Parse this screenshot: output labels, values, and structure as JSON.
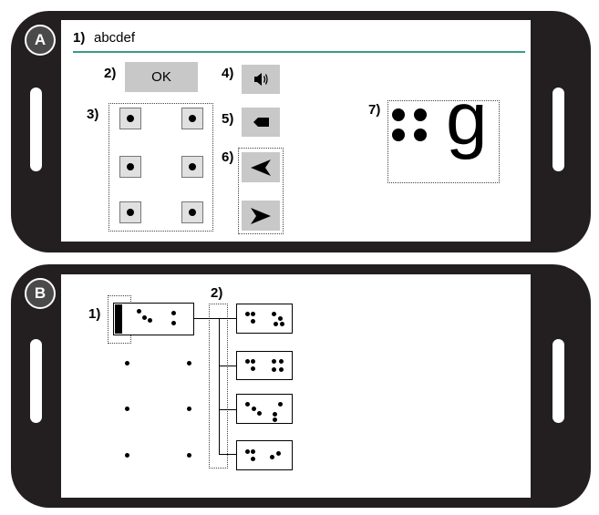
{
  "panel_a": {
    "label": "A",
    "text_field": {
      "number": "1)",
      "value": "abcdef"
    },
    "ok_button": {
      "number": "2)",
      "label": "OK"
    },
    "braille_keys_number": "3)",
    "speaker_button_number": "4)",
    "backspace_button_number": "5)",
    "nav_buttons_number": "6)",
    "preview": {
      "number": "7)",
      "letter": "g"
    }
  },
  "panel_b": {
    "label": "B",
    "input_cell_number": "1)",
    "suggestions_number": "2)"
  },
  "colors": {
    "phone": "#231f20",
    "accent_line": "#3a9a8a",
    "button": "#c8c8c8"
  }
}
